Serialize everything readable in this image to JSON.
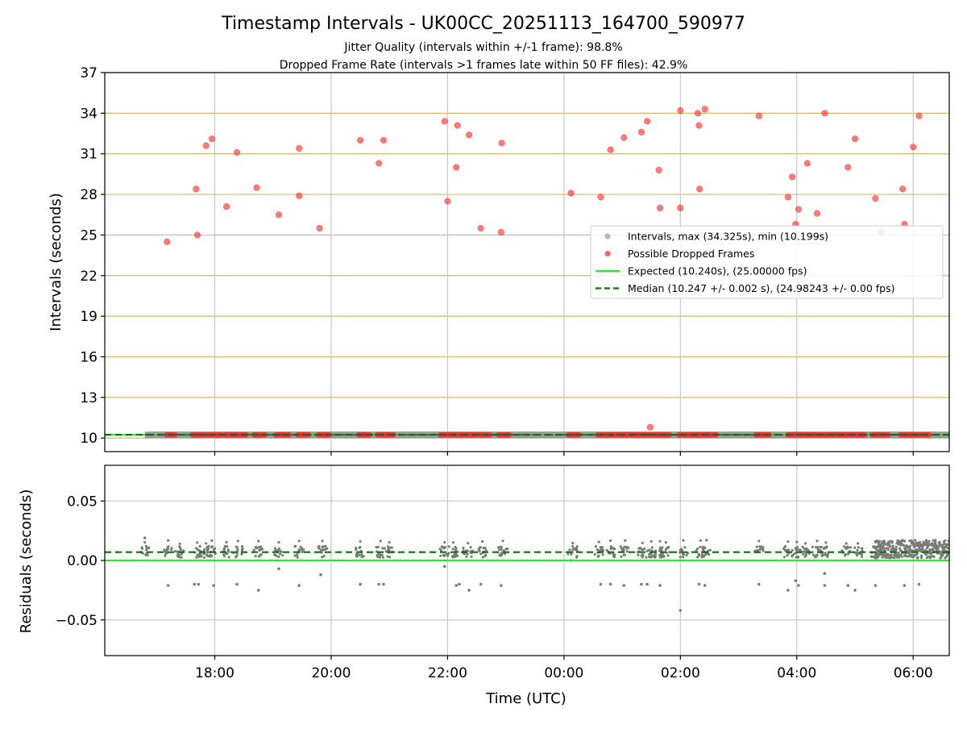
{
  "chart_data": {
    "title": "Timestamp Intervals - UK00CC_20251113_164700_590977",
    "subtitle_lines": [
      "Jitter Quality (intervals within +/-1 frame): 98.8%",
      "Dropped Frame Rate (intervals >1 frames late within 50 FF files): 42.9%"
    ],
    "xlabel": "Time (UTC)",
    "x_unit": "hours since 00:00 UTC on 13 Nov 2025",
    "xlim": [
      16.11,
      30.62
    ],
    "x_ticks": [
      {
        "value": 18,
        "label": "18:00"
      },
      {
        "value": 20,
        "label": "20:00"
      },
      {
        "value": 22,
        "label": "22:00"
      },
      {
        "value": 24,
        "label": "00:00"
      },
      {
        "value": 26,
        "label": "02:00"
      },
      {
        "value": 28,
        "label": "04:00"
      },
      {
        "value": 30,
        "label": "06:00"
      }
    ],
    "panels": [
      {
        "type": "scatter",
        "name": "intervals",
        "ylabel": "Intervals (seconds)",
        "ylim": [
          9,
          37
        ],
        "y_ticks": [
          10,
          13,
          16,
          19,
          22,
          25,
          28,
          31,
          34,
          37
        ],
        "grid_color": "#d4b96a",
        "legend": {
          "position": "center-right",
          "entries": [
            {
              "label": "Intervals, max (34.325s), min (10.199s)",
              "marker": "scatter",
              "color": "#808080"
            },
            {
              "label": "Possible Dropped Frames",
              "marker": "scatter",
              "color": "#ff3333"
            },
            {
              "label": "Expected (10.240s), (25.00000 fps)",
              "marker": "line",
              "color": "#22ee22"
            },
            {
              "label": "Median (10.247 +/- 0.002 s), (24.98243 +/- 0.00 fps)",
              "marker": "dashed",
              "color": "#007700"
            }
          ]
        },
        "expected_line": {
          "y": 10.24,
          "color": "#22ee22"
        },
        "median_line": {
          "y": 10.247,
          "color": "#007700"
        },
        "baseline_band": {
          "x_start": 16.8,
          "x_end": 30.62,
          "y": 10.24
        },
        "dropped_cluster_segments": [
          [
            17.18,
            17.35
          ],
          [
            17.62,
            18.15
          ],
          [
            18.18,
            18.55
          ],
          [
            18.68,
            18.88
          ],
          [
            19.05,
            19.3
          ],
          [
            19.43,
            19.62
          ],
          [
            19.78,
            19.98
          ],
          [
            20.48,
            20.68
          ],
          [
            20.8,
            21.1
          ],
          [
            21.88,
            22.75
          ],
          [
            22.88,
            23.08
          ],
          [
            24.08,
            24.3
          ],
          [
            24.58,
            25.05
          ],
          [
            25.05,
            25.3
          ],
          [
            25.32,
            25.85
          ],
          [
            25.98,
            26.3
          ],
          [
            26.3,
            26.65
          ],
          [
            27.3,
            27.55
          ],
          [
            27.85,
            28.72
          ],
          [
            28.72,
            29.2
          ],
          [
            29.3,
            29.6
          ],
          [
            29.78,
            30.3
          ]
        ],
        "dropped_points": [
          {
            "x": 17.18,
            "y": 24.5
          },
          {
            "x": 17.68,
            "y": 28.4
          },
          {
            "x": 17.7,
            "y": 25.0
          },
          {
            "x": 17.85,
            "y": 31.6
          },
          {
            "x": 17.95,
            "y": 32.1
          },
          {
            "x": 18.2,
            "y": 27.1
          },
          {
            "x": 18.38,
            "y": 31.1
          },
          {
            "x": 18.72,
            "y": 28.5
          },
          {
            "x": 19.1,
            "y": 26.5
          },
          {
            "x": 19.45,
            "y": 31.4
          },
          {
            "x": 19.45,
            "y": 27.9
          },
          {
            "x": 19.8,
            "y": 25.5
          },
          {
            "x": 20.5,
            "y": 32.0
          },
          {
            "x": 20.82,
            "y": 30.3
          },
          {
            "x": 20.9,
            "y": 32.0
          },
          {
            "x": 21.95,
            "y": 33.4
          },
          {
            "x": 22.0,
            "y": 27.5
          },
          {
            "x": 22.15,
            "y": 30.0
          },
          {
            "x": 22.17,
            "y": 33.1
          },
          {
            "x": 22.37,
            "y": 32.4
          },
          {
            "x": 22.57,
            "y": 25.5
          },
          {
            "x": 22.92,
            "y": 25.2
          },
          {
            "x": 22.93,
            "y": 31.8
          },
          {
            "x": 24.12,
            "y": 28.1
          },
          {
            "x": 24.63,
            "y": 27.8
          },
          {
            "x": 24.8,
            "y": 31.3
          },
          {
            "x": 25.03,
            "y": 32.2
          },
          {
            "x": 25.33,
            "y": 32.6
          },
          {
            "x": 25.43,
            "y": 33.4
          },
          {
            "x": 25.63,
            "y": 29.8
          },
          {
            "x": 25.65,
            "y": 27.0
          },
          {
            "x": 25.48,
            "y": 10.8
          },
          {
            "x": 26.0,
            "y": 34.2
          },
          {
            "x": 26.0,
            "y": 27.0
          },
          {
            "x": 26.3,
            "y": 34.0
          },
          {
            "x": 26.32,
            "y": 33.1
          },
          {
            "x": 26.33,
            "y": 28.4
          },
          {
            "x": 26.42,
            "y": 34.3
          },
          {
            "x": 27.35,
            "y": 33.8
          },
          {
            "x": 27.85,
            "y": 27.8
          },
          {
            "x": 27.92,
            "y": 29.3
          },
          {
            "x": 27.98,
            "y": 25.8
          },
          {
            "x": 28.03,
            "y": 26.9
          },
          {
            "x": 28.18,
            "y": 30.3
          },
          {
            "x": 28.35,
            "y": 26.6
          },
          {
            "x": 28.48,
            "y": 34.0
          },
          {
            "x": 28.88,
            "y": 30.0
          },
          {
            "x": 29.0,
            "y": 32.1
          },
          {
            "x": 29.35,
            "y": 27.7
          },
          {
            "x": 29.45,
            "y": 25.2
          },
          {
            "x": 29.82,
            "y": 28.4
          },
          {
            "x": 29.85,
            "y": 25.8
          },
          {
            "x": 30.0,
            "y": 31.5
          },
          {
            "x": 30.1,
            "y": 33.8
          }
        ]
      },
      {
        "type": "scatter",
        "name": "residuals",
        "ylabel": "Residuals (seconds)",
        "ylim": [
          -0.08,
          0.08
        ],
        "y_ticks": [
          {
            "value": 0.05,
            "label": "0.05"
          },
          {
            "value": 0.0,
            "label": "0.00"
          },
          {
            "value": -0.05,
            "label": "−0.05"
          }
        ],
        "grid_color": "#cccccc",
        "expected_line": {
          "y": 0.0,
          "color": "#22ee22"
        },
        "median_line": {
          "y": 0.007,
          "color": "#007700"
        },
        "cluster_centers": [
          16.8,
          17.2,
          17.4,
          17.7,
          17.85,
          17.95,
          18.2,
          18.4,
          18.75,
          19.1,
          19.45,
          19.85,
          20.5,
          20.85,
          21.0,
          21.95,
          22.1,
          22.35,
          22.6,
          22.95,
          24.15,
          24.6,
          24.8,
          25.05,
          25.35,
          25.5,
          25.65,
          25.75,
          26.05,
          26.35,
          26.45,
          27.35,
          27.85,
          28.0,
          28.15,
          28.35,
          28.5,
          28.85,
          29.05,
          29.35,
          29.5
        ],
        "dense_band": {
          "x_start": 29.35,
          "x_end": 30.62,
          "y_low": 0.0,
          "y_high": 0.017
        },
        "outliers": [
          {
            "x": 16.8,
            "y": 0.019
          },
          {
            "x": 17.2,
            "y": -0.021
          },
          {
            "x": 17.65,
            "y": -0.02
          },
          {
            "x": 17.72,
            "y": -0.02
          },
          {
            "x": 17.98,
            "y": -0.021
          },
          {
            "x": 18.38,
            "y": -0.02
          },
          {
            "x": 18.75,
            "y": -0.025
          },
          {
            "x": 19.1,
            "y": -0.007
          },
          {
            "x": 19.45,
            "y": -0.021
          },
          {
            "x": 19.82,
            "y": -0.012
          },
          {
            "x": 20.5,
            "y": -0.02
          },
          {
            "x": 20.82,
            "y": -0.02
          },
          {
            "x": 20.9,
            "y": -0.02
          },
          {
            "x": 21.95,
            "y": -0.005
          },
          {
            "x": 22.15,
            "y": -0.021
          },
          {
            "x": 22.2,
            "y": -0.02
          },
          {
            "x": 22.37,
            "y": -0.025
          },
          {
            "x": 22.57,
            "y": -0.02
          },
          {
            "x": 22.92,
            "y": -0.021
          },
          {
            "x": 24.12,
            "y": 0.0
          },
          {
            "x": 24.63,
            "y": -0.02
          },
          {
            "x": 24.8,
            "y": -0.02
          },
          {
            "x": 25.03,
            "y": -0.021
          },
          {
            "x": 25.33,
            "y": -0.02
          },
          {
            "x": 25.43,
            "y": -0.02
          },
          {
            "x": 25.65,
            "y": -0.021
          },
          {
            "x": 25.48,
            "y": 0.003
          },
          {
            "x": 26.0,
            "y": -0.042
          },
          {
            "x": 26.32,
            "y": -0.02
          },
          {
            "x": 26.42,
            "y": -0.021
          },
          {
            "x": 27.35,
            "y": -0.02
          },
          {
            "x": 27.85,
            "y": -0.025
          },
          {
            "x": 27.98,
            "y": -0.017
          },
          {
            "x": 28.03,
            "y": -0.021
          },
          {
            "x": 28.48,
            "y": -0.021
          },
          {
            "x": 28.48,
            "y": -0.011
          },
          {
            "x": 28.88,
            "y": -0.021
          },
          {
            "x": 29.0,
            "y": -0.025
          },
          {
            "x": 29.35,
            "y": -0.021
          },
          {
            "x": 29.85,
            "y": -0.021
          },
          {
            "x": 30.1,
            "y": -0.02
          }
        ]
      }
    ]
  }
}
